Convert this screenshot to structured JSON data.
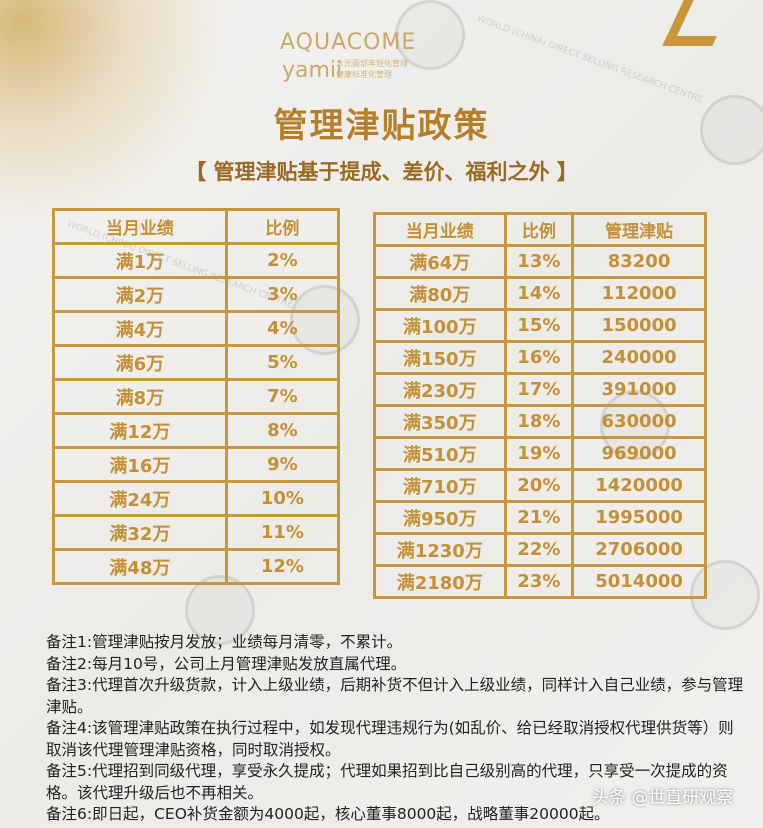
{
  "brand": {
    "name": "AQUACOME",
    "sub": "yamii",
    "tagline": [
      "水光面部年轻化管理",
      "健康标准化管理"
    ]
  },
  "title": "管理津贴政策",
  "subtitle": "【 管理津贴基于提成、差价、福利之外 】",
  "left_table": {
    "headers": [
      "当月业绩",
      "比例"
    ],
    "rows": [
      [
        "满1万",
        "2%"
      ],
      [
        "满2万",
        "3%"
      ],
      [
        "满4万",
        "4%"
      ],
      [
        "满6万",
        "5%"
      ],
      [
        "满8万",
        "7%"
      ],
      [
        "满12万",
        "8%"
      ],
      [
        "满16万",
        "9%"
      ],
      [
        "满24万",
        "10%"
      ],
      [
        "满32万",
        "11%"
      ],
      [
        "满48万",
        "12%"
      ]
    ]
  },
  "right_table": {
    "headers": [
      "当月业绩",
      "比例",
      "管理津贴"
    ],
    "rows": [
      [
        "满64万",
        "13%",
        "83200"
      ],
      [
        "满80万",
        "14%",
        "112000"
      ],
      [
        "满100万",
        "15%",
        "150000"
      ],
      [
        "满150万",
        "16%",
        "240000"
      ],
      [
        "满230万",
        "17%",
        "391000"
      ],
      [
        "满350万",
        "18%",
        "630000"
      ],
      [
        "满510万",
        "19%",
        "969000"
      ],
      [
        "满710万",
        "20%",
        "1420000"
      ],
      [
        "满950万",
        "21%",
        "1995000"
      ],
      [
        "满1230万",
        "22%",
        "2706000"
      ],
      [
        "满2180万",
        "23%",
        "5014000"
      ]
    ]
  },
  "notes": [
    "备注1:管理津贴按月发放；业绩每月清零，不累计。",
    "备注2:每月10号，公司上月管理津贴发放直属代理。",
    "备注3:代理首次升级货款，计入上级业绩，后期补货不但计入上级业绩，同样计入自己业绩，参与管理津贴。",
    "备注4:该管理津贴政策在执行过程中，如发现代理违规行为(如乱价、给已经取消授权代理供货等）则取消该代理管理津贴资格，同时取消授权。",
    "备注5:代理招到同级代理，享受永久提成；代理如果招到比自己级别高的代理，只享受一次提成的资格。该代理升级后也不再相关。",
    "备注6:即日起，CEO补货金额为4000起，核心董事8000起，战略董事20000起。"
  ],
  "watermark": {
    "text": "世直研",
    "sub": "WORLD (CHINA) DIRECT SELLING RESEARCH CENTRE",
    "credit": "头条 @世直研观察"
  },
  "colors": {
    "gold": "#c9963a",
    "title": "#b57f2a"
  }
}
